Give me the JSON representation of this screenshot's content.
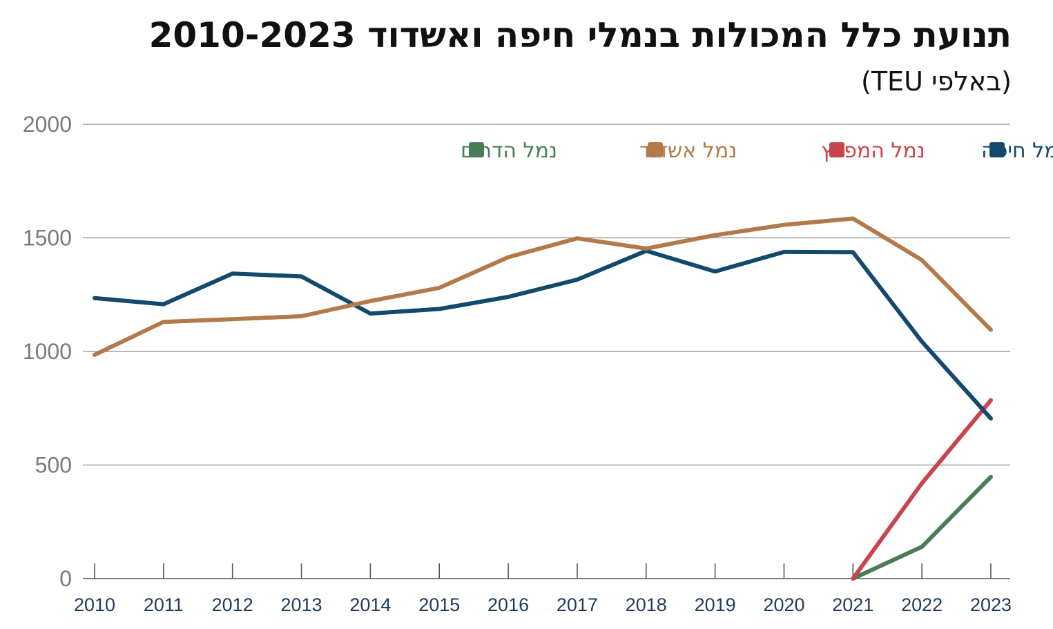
{
  "chart_data": {
    "type": "line",
    "title": "תנועת כלל המכולות בנמלי חיפה ואשדוד 2010-2023",
    "subtitle": "(באלפי TEU)",
    "xlabel": "",
    "ylabel": "",
    "x": [
      "2010",
      "2011",
      "2012",
      "2013",
      "2014",
      "2015",
      "2016",
      "2017",
      "2018",
      "2019",
      "2020",
      "2021",
      "2022",
      "2023"
    ],
    "ylim": [
      0,
      2000
    ],
    "yticks": [
      0,
      500,
      1000,
      1500,
      2000
    ],
    "grid": true,
    "legend_position": "top",
    "series": [
      {
        "name": "נמל חיפה",
        "color": "#13496b",
        "values": [
          1235,
          1208,
          1343,
          1330,
          1167,
          1187,
          1240,
          1316,
          1443,
          1352,
          1438,
          1437,
          1043,
          705
        ]
      },
      {
        "name": "נמל המפרץ",
        "color": "#c8454f",
        "values": [
          null,
          null,
          null,
          null,
          null,
          null,
          null,
          null,
          null,
          null,
          null,
          0,
          420,
          785
        ]
      },
      {
        "name": "נמל אשדוד",
        "color": "#b27a4a",
        "values": [
          985,
          1130,
          1142,
          1155,
          1222,
          1280,
          1415,
          1498,
          1453,
          1512,
          1557,
          1585,
          1402,
          1095
        ]
      },
      {
        "name": "נמל הדרום",
        "color": "#4a7d56",
        "values": [
          null,
          null,
          null,
          null,
          null,
          null,
          null,
          null,
          null,
          null,
          null,
          0,
          140,
          448
        ]
      }
    ]
  }
}
